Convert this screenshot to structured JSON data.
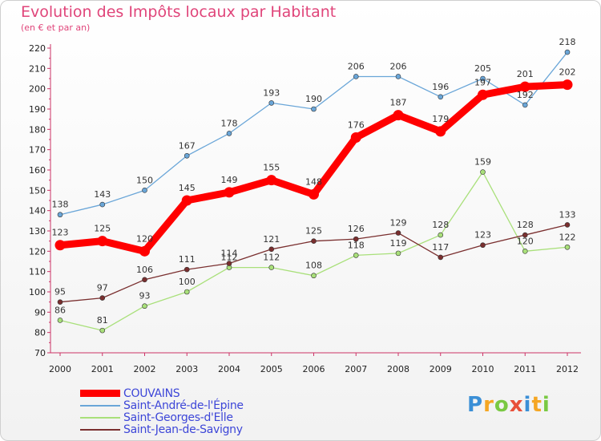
{
  "header": {
    "title": "Evolution des Impôts locaux par Habitant",
    "subtitle": "(en € et par an)"
  },
  "logo": {
    "letters": [
      "P",
      "r",
      "o",
      "x",
      "i",
      "t",
      "i"
    ],
    "colors": [
      "#3b8fd6",
      "#f5a623",
      "#7ac943",
      "#e8503a",
      "#3b8fd6",
      "#f5a623",
      "#7ac943"
    ]
  },
  "chart_data": {
    "type": "line",
    "x": [
      "2000",
      "2001",
      "2002",
      "2003",
      "2004",
      "2005",
      "2006",
      "2007",
      "2008",
      "2009",
      "2010",
      "2011",
      "2012"
    ],
    "ylim": [
      70,
      220
    ],
    "yticks": [
      70,
      80,
      90,
      100,
      110,
      120,
      130,
      140,
      150,
      160,
      170,
      180,
      190,
      200,
      210,
      220
    ],
    "grid": false,
    "legend": "bottom-left",
    "series": [
      {
        "name": "COUVAINS",
        "color": "#ff0000",
        "values": [
          123,
          125,
          120,
          145,
          149,
          155,
          148,
          176,
          187,
          179,
          197,
          201,
          202
        ]
      },
      {
        "name": "Saint-André-de-l'Épine",
        "color": "#6aa6d8",
        "values": [
          138,
          143,
          150,
          167,
          178,
          193,
          190,
          206,
          206,
          196,
          205,
          192,
          218
        ]
      },
      {
        "name": "Saint-Georges-d'Elle",
        "color": "#a9e07a",
        "values": [
          86,
          81,
          93,
          100,
          112,
          112,
          108,
          118,
          119,
          128,
          159,
          120,
          122
        ]
      },
      {
        "name": "Saint-Jean-de-Savigny",
        "color": "#7a2f2f",
        "values": [
          95,
          97,
          106,
          111,
          114,
          121,
          125,
          126,
          129,
          117,
          123,
          128,
          133
        ]
      }
    ]
  }
}
